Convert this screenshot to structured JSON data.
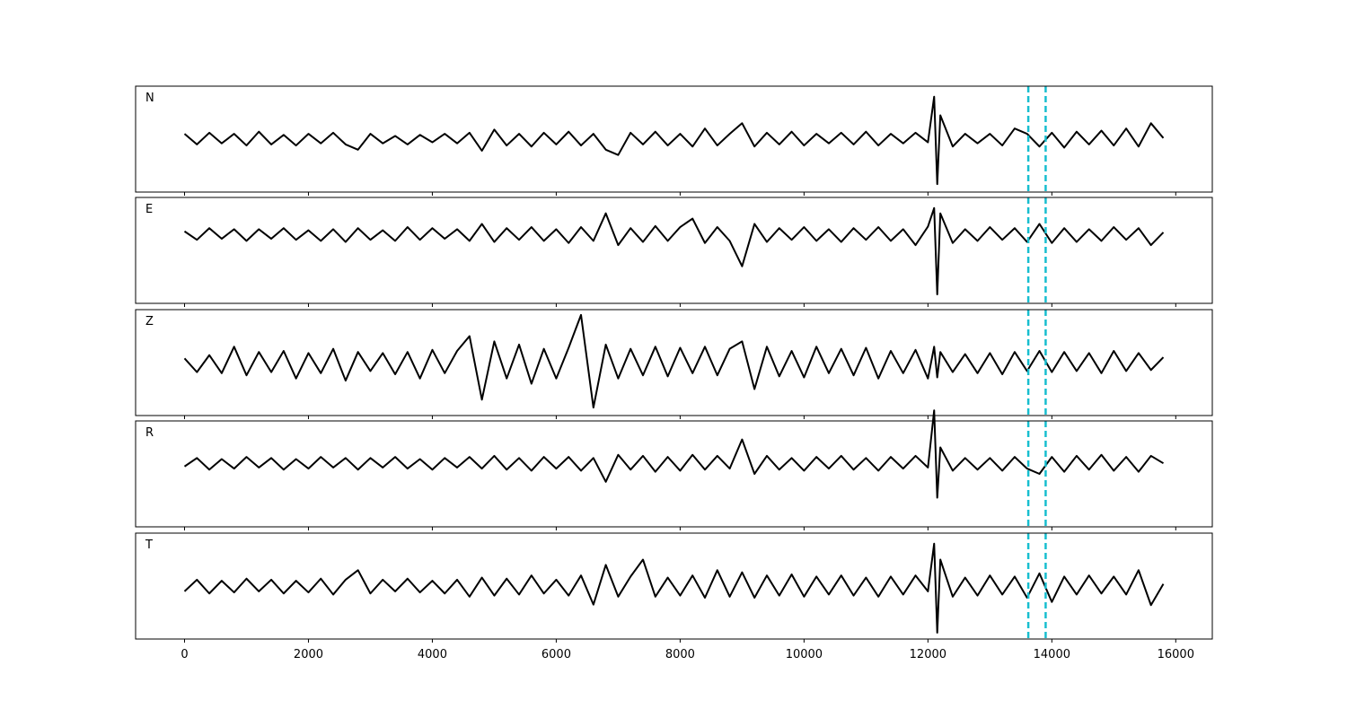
{
  "chart_data": [
    {
      "type": "line",
      "label": "N",
      "color": "#000000",
      "vline_color": "#17becf",
      "vlines": [
        13620,
        13900
      ],
      "xlim": [
        -790,
        16590
      ],
      "ylim": [
        -1,
        1
      ],
      "xticks": [
        0,
        2000,
        4000,
        6000,
        8000,
        10000,
        12000,
        14000,
        16000
      ],
      "x": [
        0,
        200,
        400,
        600,
        800,
        1000,
        1200,
        1400,
        1600,
        1800,
        2000,
        2200,
        2400,
        2600,
        2800,
        3000,
        3200,
        3400,
        3600,
        3800,
        4000,
        4200,
        4400,
        4600,
        4800,
        5000,
        5200,
        5400,
        5600,
        5800,
        6000,
        6200,
        6400,
        6600,
        6800,
        7000,
        7200,
        7400,
        7600,
        7800,
        8000,
        8200,
        8400,
        8600,
        8800,
        9000,
        9200,
        9400,
        9600,
        9800,
        10000,
        10200,
        10400,
        10600,
        10800,
        11000,
        11200,
        11400,
        11600,
        11800,
        12000,
        12100,
        12150,
        12200,
        12400,
        12600,
        12800,
        13000,
        13200,
        13400,
        13600,
        13800,
        14000,
        14200,
        14400,
        14600,
        14800,
        15000,
        15200,
        15400,
        15600,
        15800
      ],
      "values": [
        0.1,
        -0.1,
        0.12,
        -0.08,
        0.1,
        -0.12,
        0.14,
        -0.1,
        0.08,
        -0.12,
        0.1,
        -0.08,
        0.12,
        -0.1,
        -0.2,
        0.1,
        -0.08,
        0.06,
        -0.1,
        0.08,
        -0.06,
        0.1,
        -0.08,
        0.12,
        -0.22,
        0.18,
        -0.12,
        0.1,
        -0.14,
        0.12,
        -0.1,
        0.14,
        -0.12,
        0.1,
        -0.2,
        -0.3,
        0.12,
        -0.1,
        0.14,
        -0.12,
        0.1,
        -0.14,
        0.2,
        -0.12,
        0.1,
        0.3,
        -0.14,
        0.12,
        -0.1,
        0.14,
        -0.12,
        0.1,
        -0.08,
        0.12,
        -0.1,
        0.14,
        -0.12,
        0.1,
        -0.08,
        0.12,
        -0.06,
        0.8,
        -0.85,
        0.45,
        -0.14,
        0.1,
        -0.08,
        0.1,
        -0.12,
        0.2,
        0.1,
        -0.14,
        0.12,
        -0.16,
        0.14,
        -0.1,
        0.16,
        -0.12,
        0.2,
        -0.14,
        0.3,
        0.02
      ]
    },
    {
      "type": "line",
      "label": "E",
      "color": "#000000",
      "vline_color": "#17becf",
      "vlines": [
        13620,
        13900
      ],
      "xlim": [
        -790,
        16590
      ],
      "ylim": [
        -1.3,
        0.7
      ],
      "xticks": [
        0,
        2000,
        4000,
        6000,
        8000,
        10000,
        12000,
        14000,
        16000
      ],
      "x": [
        0,
        200,
        400,
        600,
        800,
        1000,
        1200,
        1400,
        1600,
        1800,
        2000,
        2200,
        2400,
        2600,
        2800,
        3000,
        3200,
        3400,
        3600,
        3800,
        4000,
        4200,
        4400,
        4600,
        4800,
        5000,
        5200,
        5400,
        5600,
        5800,
        6000,
        6200,
        6400,
        6600,
        6800,
        7000,
        7200,
        7400,
        7600,
        7800,
        8000,
        8200,
        8400,
        8600,
        8800,
        9000,
        9200,
        9400,
        9600,
        9800,
        10000,
        10200,
        10400,
        10600,
        10800,
        11000,
        11200,
        11400,
        11600,
        11800,
        12000,
        12100,
        12150,
        12200,
        12400,
        12600,
        12800,
        13000,
        13200,
        13400,
        13600,
        13800,
        14000,
        14200,
        14400,
        14600,
        14800,
        15000,
        15200,
        15400,
        15600,
        15800
      ],
      "values": [
        0.06,
        -0.1,
        0.12,
        -0.08,
        0.1,
        -0.12,
        0.1,
        -0.08,
        0.12,
        -0.1,
        0.08,
        -0.12,
        0.1,
        -0.14,
        0.12,
        -0.1,
        0.08,
        -0.12,
        0.14,
        -0.1,
        0.12,
        -0.08,
        0.1,
        -0.12,
        0.2,
        -0.14,
        0.12,
        -0.1,
        0.14,
        -0.12,
        0.1,
        -0.16,
        0.14,
        -0.12,
        0.4,
        -0.2,
        0.12,
        -0.14,
        0.16,
        -0.12,
        0.14,
        0.3,
        -0.16,
        0.14,
        -0.12,
        -0.6,
        0.2,
        -0.14,
        0.12,
        -0.1,
        0.14,
        -0.12,
        0.1,
        -0.14,
        0.12,
        -0.1,
        0.14,
        -0.12,
        0.1,
        -0.2,
        0.15,
        0.5,
        -1.13,
        0.4,
        -0.16,
        0.1,
        -0.12,
        0.14,
        -0.1,
        0.12,
        -0.14,
        0.2,
        -0.16,
        0.12,
        -0.14,
        0.1,
        -0.12,
        0.14,
        -0.1,
        0.12,
        -0.2,
        0.04
      ]
    },
    {
      "type": "line",
      "label": "Z",
      "color": "#000000",
      "vline_color": "#17becf",
      "vlines": [
        13620,
        13900
      ],
      "xlim": [
        -790,
        16590
      ],
      "ylim": [
        -1,
        1
      ],
      "xticks": [
        0,
        2000,
        4000,
        6000,
        8000,
        10000,
        12000,
        14000,
        16000
      ],
      "x": [
        0,
        200,
        400,
        600,
        800,
        1000,
        1200,
        1400,
        1600,
        1800,
        2000,
        2200,
        2400,
        2600,
        2800,
        3000,
        3200,
        3400,
        3600,
        3800,
        4000,
        4200,
        4400,
        4600,
        4800,
        5000,
        5200,
        5400,
        5600,
        5800,
        6000,
        6200,
        6400,
        6600,
        6800,
        7000,
        7200,
        7400,
        7600,
        7800,
        8000,
        8200,
        8400,
        8600,
        8800,
        9000,
        9200,
        9400,
        9600,
        9800,
        10000,
        10200,
        10400,
        10600,
        10800,
        11000,
        11200,
        11400,
        11600,
        11800,
        12000,
        12100,
        12150,
        12200,
        12400,
        12600,
        12800,
        13000,
        13200,
        13400,
        13600,
        13800,
        14000,
        14200,
        14400,
        14600,
        14800,
        15000,
        15200,
        15400,
        15600,
        15800
      ],
      "values": [
        0.08,
        -0.18,
        0.14,
        -0.2,
        0.3,
        -0.24,
        0.2,
        -0.18,
        0.22,
        -0.3,
        0.18,
        -0.2,
        0.26,
        -0.34,
        0.2,
        -0.16,
        0.18,
        -0.22,
        0.2,
        -0.3,
        0.24,
        -0.2,
        0.22,
        0.5,
        -0.7,
        0.4,
        -0.3,
        0.34,
        -0.4,
        0.26,
        -0.3,
        0.28,
        0.9,
        -0.85,
        0.34,
        -0.3,
        0.26,
        -0.24,
        0.3,
        -0.26,
        0.28,
        -0.2,
        0.3,
        -0.24,
        0.26,
        0.4,
        -0.5,
        0.3,
        -0.26,
        0.22,
        -0.28,
        0.3,
        -0.2,
        0.26,
        -0.24,
        0.28,
        -0.3,
        0.22,
        -0.2,
        0.24,
        -0.3,
        0.3,
        -0.28,
        0.2,
        -0.18,
        0.16,
        -0.2,
        0.18,
        -0.22,
        0.2,
        -0.16,
        0.22,
        -0.18,
        0.2,
        -0.16,
        0.18,
        -0.2,
        0.22,
        -0.16,
        0.18,
        -0.14,
        0.1
      ]
    },
    {
      "type": "line",
      "label": "R",
      "color": "#000000",
      "vline_color": "#17becf",
      "vlines": [
        13620,
        13900
      ],
      "xlim": [
        -790,
        16590
      ],
      "ylim": [
        -1.2,
        0.8
      ],
      "xticks": [
        0,
        2000,
        4000,
        6000,
        8000,
        10000,
        12000,
        14000,
        16000
      ],
      "x": [
        0,
        200,
        400,
        600,
        800,
        1000,
        1200,
        1400,
        1600,
        1800,
        2000,
        2200,
        2400,
        2600,
        2800,
        3000,
        3200,
        3400,
        3600,
        3800,
        4000,
        4200,
        4400,
        4600,
        4800,
        5000,
        5200,
        5400,
        5600,
        5800,
        6000,
        6200,
        6400,
        6600,
        6800,
        7000,
        7200,
        7400,
        7600,
        7800,
        8000,
        8200,
        8400,
        8600,
        8800,
        9000,
        9200,
        9400,
        9600,
        9800,
        10000,
        10200,
        10400,
        10600,
        10800,
        11000,
        11200,
        11400,
        11600,
        11800,
        12000,
        12100,
        12150,
        12200,
        12400,
        12600,
        12800,
        13000,
        13200,
        13400,
        13600,
        13800,
        14000,
        14200,
        14400,
        14600,
        14800,
        15000,
        15200,
        15400,
        15600,
        15800
      ],
      "values": [
        -0.06,
        0.1,
        -0.12,
        0.08,
        -0.1,
        0.12,
        -0.08,
        0.1,
        -0.12,
        0.08,
        -0.1,
        0.12,
        -0.08,
        0.1,
        -0.12,
        0.1,
        -0.08,
        0.12,
        -0.1,
        0.08,
        -0.12,
        0.1,
        -0.08,
        0.12,
        -0.1,
        0.14,
        -0.12,
        0.1,
        -0.14,
        0.12,
        -0.1,
        0.12,
        -0.14,
        0.1,
        -0.35,
        0.16,
        -0.12,
        0.14,
        -0.16,
        0.12,
        -0.14,
        0.16,
        -0.12,
        0.14,
        -0.1,
        0.45,
        -0.2,
        0.14,
        -0.12,
        0.1,
        -0.14,
        0.12,
        -0.1,
        0.14,
        -0.12,
        0.1,
        -0.14,
        0.12,
        -0.1,
        0.14,
        -0.08,
        1.0,
        -0.65,
        0.3,
        -0.14,
        0.1,
        -0.12,
        0.1,
        -0.14,
        0.12,
        -0.1,
        -0.2,
        0.12,
        -0.16,
        0.14,
        -0.12,
        0.16,
        -0.14,
        0.12,
        -0.16,
        0.14,
        0.0
      ]
    },
    {
      "type": "line",
      "label": "T",
      "color": "#000000",
      "vline_color": "#17becf",
      "vlines": [
        13620,
        13900
      ],
      "xlim": [
        -790,
        16590
      ],
      "ylim": [
        -1,
        1
      ],
      "xticks": [
        0,
        2000,
        4000,
        6000,
        8000,
        10000,
        12000,
        14000,
        16000
      ],
      "x": [
        0,
        200,
        400,
        600,
        800,
        1000,
        1200,
        1400,
        1600,
        1800,
        2000,
        2200,
        2400,
        2600,
        2800,
        3000,
        3200,
        3400,
        3600,
        3800,
        4000,
        4200,
        4400,
        4600,
        4800,
        5000,
        5200,
        5400,
        5600,
        5800,
        6000,
        6200,
        6400,
        6600,
        6800,
        7000,
        7200,
        7400,
        7600,
        7800,
        8000,
        8200,
        8400,
        8600,
        8800,
        9000,
        9200,
        9400,
        9600,
        9800,
        10000,
        10200,
        10400,
        10600,
        10800,
        11000,
        11200,
        11400,
        11600,
        11800,
        12000,
        12100,
        12150,
        12200,
        12400,
        12600,
        12800,
        13000,
        13200,
        13400,
        13600,
        13800,
        14000,
        14200,
        14400,
        14600,
        14800,
        15000,
        15200,
        15400,
        15600,
        15800
      ],
      "values": [
        -0.1,
        0.12,
        -0.14,
        0.1,
        -0.12,
        0.14,
        -0.1,
        0.12,
        -0.14,
        0.1,
        -0.12,
        0.14,
        -0.16,
        0.12,
        0.3,
        -0.14,
        0.12,
        -0.1,
        0.14,
        -0.12,
        0.1,
        -0.14,
        0.12,
        -0.2,
        0.16,
        -0.18,
        0.14,
        -0.16,
        0.2,
        -0.14,
        0.12,
        -0.18,
        0.2,
        -0.35,
        0.4,
        -0.2,
        0.18,
        0.5,
        -0.2,
        0.16,
        -0.18,
        0.2,
        -0.22,
        0.3,
        -0.2,
        0.26,
        -0.22,
        0.2,
        -0.18,
        0.22,
        -0.2,
        0.18,
        -0.16,
        0.2,
        -0.18,
        0.16,
        -0.2,
        0.18,
        -0.16,
        0.2,
        -0.1,
        0.8,
        -0.88,
        0.5,
        -0.2,
        0.16,
        -0.18,
        0.2,
        -0.16,
        0.18,
        -0.22,
        0.24,
        -0.3,
        0.18,
        -0.16,
        0.2,
        -0.14,
        0.18,
        -0.16,
        0.3,
        -0.36,
        0.04
      ]
    }
  ]
}
